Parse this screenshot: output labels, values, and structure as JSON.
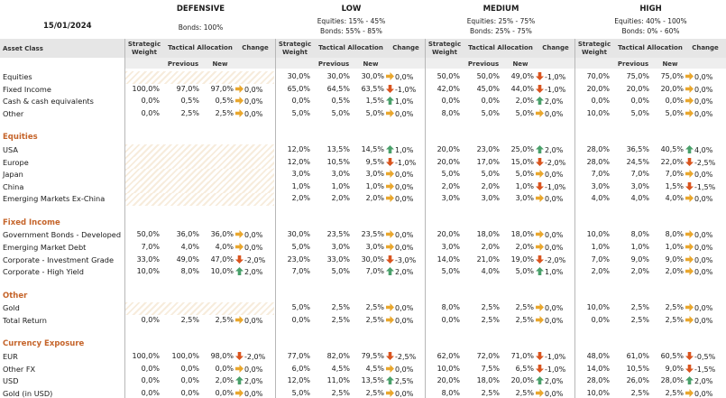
{
  "date": "15/01/2024",
  "profiles": [
    {
      "name": "DEFENSIVE",
      "line1": "Bonds: 100%",
      "line2": ""
    },
    {
      "name": "LOW",
      "line1": "Equities: 15% - 45%",
      "line2": "Bonds: 55% - 85%"
    },
    {
      "name": "MEDIUM",
      "line1": "Equities: 25% - 75%",
      "line2": "Bonds: 25% - 75%"
    },
    {
      "name": "HIGH",
      "line1": "Equities: 40% - 100%",
      "line2": "Bonds: 0% - 60%"
    }
  ],
  "headers": {
    "asset_class": "Asset Class",
    "strategic": "Strategic Weight",
    "tactical": "Tactical Allocation",
    "change": "Change",
    "previous": "Previous",
    "new": "New"
  },
  "colors": {
    "up": "#4aa06a",
    "down": "#d9541e",
    "flat": "#e9a72e",
    "section": "#c5642a"
  },
  "rows": [
    {
      "t": "row",
      "label": "Equities",
      "c": [
        [
          "",
          "",
          "",
          ""
        ],
        [
          "30,0%",
          "30,0%",
          "30,0%",
          "0,0%",
          "flat"
        ],
        [
          "50,0%",
          "50,0%",
          "49,0%",
          "-1,0%",
          "down"
        ],
        [
          "70,0%",
          "75,0%",
          "75,0%",
          "0,0%",
          "flat"
        ]
      ]
    },
    {
      "t": "row",
      "label": "Fixed Income",
      "c": [
        [
          "100,0%",
          "97,0%",
          "97,0%",
          "0,0%",
          "flat"
        ],
        [
          "65,0%",
          "64,5%",
          "63,5%",
          "-1,0%",
          "down"
        ],
        [
          "42,0%",
          "45,0%",
          "44,0%",
          "-1,0%",
          "down"
        ],
        [
          "20,0%",
          "20,0%",
          "20,0%",
          "0,0%",
          "flat"
        ]
      ]
    },
    {
      "t": "row",
      "label": "Cash & cash equivalents",
      "c": [
        [
          "0,0%",
          "0,5%",
          "0,5%",
          "0,0%",
          "flat"
        ],
        [
          "0,0%",
          "0,5%",
          "1,5%",
          "1,0%",
          "up"
        ],
        [
          "0,0%",
          "0,0%",
          "2,0%",
          "2,0%",
          "up"
        ],
        [
          "0,0%",
          "0,0%",
          "0,0%",
          "0,0%",
          "flat"
        ]
      ]
    },
    {
      "t": "row",
      "label": "Other",
      "c": [
        [
          "0,0%",
          "2,5%",
          "2,5%",
          "0,0%",
          "flat"
        ],
        [
          "5,0%",
          "5,0%",
          "5,0%",
          "0,0%",
          "flat"
        ],
        [
          "8,0%",
          "5,0%",
          "5,0%",
          "0,0%",
          "flat"
        ],
        [
          "10,0%",
          "5,0%",
          "5,0%",
          "0,0%",
          "flat"
        ]
      ]
    },
    {
      "t": "gap"
    },
    {
      "t": "sec",
      "label": "Equities"
    },
    {
      "t": "row",
      "label": "USA",
      "c": [
        null,
        [
          "12,0%",
          "13,5%",
          "14,5%",
          "1,0%",
          "up"
        ],
        [
          "20,0%",
          "23,0%",
          "25,0%",
          "2,0%",
          "up"
        ],
        [
          "28,0%",
          "36,5%",
          "40,5%",
          "4,0%",
          "up"
        ]
      ]
    },
    {
      "t": "row",
      "label": "Europe",
      "c": [
        null,
        [
          "12,0%",
          "10,5%",
          "9,5%",
          "-1,0%",
          "down"
        ],
        [
          "20,0%",
          "17,0%",
          "15,0%",
          "-2,0%",
          "down"
        ],
        [
          "28,0%",
          "24,5%",
          "22,0%",
          "-2,5%",
          "down"
        ]
      ]
    },
    {
      "t": "row",
      "label": "Japan",
      "c": [
        null,
        [
          "3,0%",
          "3,0%",
          "3,0%",
          "0,0%",
          "flat"
        ],
        [
          "5,0%",
          "5,0%",
          "5,0%",
          "0,0%",
          "flat"
        ],
        [
          "7,0%",
          "7,0%",
          "7,0%",
          "0,0%",
          "flat"
        ]
      ]
    },
    {
      "t": "row",
      "label": "China",
      "c": [
        null,
        [
          "1,0%",
          "1,0%",
          "1,0%",
          "0,0%",
          "flat"
        ],
        [
          "2,0%",
          "2,0%",
          "1,0%",
          "-1,0%",
          "down"
        ],
        [
          "3,0%",
          "3,0%",
          "1,5%",
          "-1,5%",
          "down"
        ]
      ]
    },
    {
      "t": "row",
      "label": "Emerging Markets Ex-China",
      "c": [
        null,
        [
          "2,0%",
          "2,0%",
          "2,0%",
          "0,0%",
          "flat"
        ],
        [
          "3,0%",
          "3,0%",
          "3,0%",
          "0,0%",
          "flat"
        ],
        [
          "4,0%",
          "4,0%",
          "4,0%",
          "0,0%",
          "flat"
        ]
      ]
    },
    {
      "t": "gap"
    },
    {
      "t": "sec",
      "label": "Fixed Income"
    },
    {
      "t": "row",
      "label": "Government Bonds - Developed",
      "c": [
        [
          "50,0%",
          "36,0%",
          "36,0%",
          "0,0%",
          "flat"
        ],
        [
          "30,0%",
          "23,5%",
          "23,5%",
          "0,0%",
          "flat"
        ],
        [
          "20,0%",
          "18,0%",
          "18,0%",
          "0,0%",
          "flat"
        ],
        [
          "10,0%",
          "8,0%",
          "8,0%",
          "0,0%",
          "flat"
        ]
      ]
    },
    {
      "t": "row",
      "label": "Emerging Market Debt",
      "c": [
        [
          "7,0%",
          "4,0%",
          "4,0%",
          "0,0%",
          "flat"
        ],
        [
          "5,0%",
          "3,0%",
          "3,0%",
          "0,0%",
          "flat"
        ],
        [
          "3,0%",
          "2,0%",
          "2,0%",
          "0,0%",
          "flat"
        ],
        [
          "1,0%",
          "1,0%",
          "1,0%",
          "0,0%",
          "flat"
        ]
      ]
    },
    {
      "t": "row",
      "label": "Corporate - Investment Grade",
      "c": [
        [
          "33,0%",
          "49,0%",
          "47,0%",
          "-2,0%",
          "down"
        ],
        [
          "23,0%",
          "33,0%",
          "30,0%",
          "-3,0%",
          "down"
        ],
        [
          "14,0%",
          "21,0%",
          "19,0%",
          "-2,0%",
          "down"
        ],
        [
          "7,0%",
          "9,0%",
          "9,0%",
          "0,0%",
          "flat"
        ]
      ]
    },
    {
      "t": "row",
      "label": "Corporate - High Yield",
      "c": [
        [
          "10,0%",
          "8,0%",
          "10,0%",
          "2,0%",
          "up"
        ],
        [
          "7,0%",
          "5,0%",
          "7,0%",
          "2,0%",
          "up"
        ],
        [
          "5,0%",
          "4,0%",
          "5,0%",
          "1,0%",
          "up"
        ],
        [
          "2,0%",
          "2,0%",
          "2,0%",
          "0,0%",
          "flat"
        ]
      ]
    },
    {
      "t": "gap"
    },
    {
      "t": "sec",
      "label": "Other"
    },
    {
      "t": "row",
      "label": "Gold",
      "c": [
        null,
        [
          "5,0%",
          "2,5%",
          "2,5%",
          "0,0%",
          "flat"
        ],
        [
          "8,0%",
          "2,5%",
          "2,5%",
          "0,0%",
          "flat"
        ],
        [
          "10,0%",
          "2,5%",
          "2,5%",
          "0,0%",
          "flat"
        ]
      ]
    },
    {
      "t": "row",
      "label": "Total Return",
      "c": [
        [
          "0,0%",
          "2,5%",
          "2,5%",
          "0,0%",
          "flat"
        ],
        [
          "0,0%",
          "2,5%",
          "2,5%",
          "0,0%",
          "flat"
        ],
        [
          "0,0%",
          "2,5%",
          "2,5%",
          "0,0%",
          "flat"
        ],
        [
          "0,0%",
          "2,5%",
          "2,5%",
          "0,0%",
          "flat"
        ]
      ]
    },
    {
      "t": "gap"
    },
    {
      "t": "sec",
      "label": "Currency Exposure"
    },
    {
      "t": "row",
      "label": "EUR",
      "c": [
        [
          "100,0%",
          "100,0%",
          "98,0%",
          "-2,0%",
          "down"
        ],
        [
          "77,0%",
          "82,0%",
          "79,5%",
          "-2,5%",
          "down"
        ],
        [
          "62,0%",
          "72,0%",
          "71,0%",
          "-1,0%",
          "down"
        ],
        [
          "48,0%",
          "61,0%",
          "60,5%",
          "-0,5%",
          "down"
        ]
      ]
    },
    {
      "t": "row",
      "label": "Other FX",
      "c": [
        [
          "0,0%",
          "0,0%",
          "0,0%",
          "0,0%",
          "flat"
        ],
        [
          "6,0%",
          "4,5%",
          "4,5%",
          "0,0%",
          "flat"
        ],
        [
          "10,0%",
          "7,5%",
          "6,5%",
          "-1,0%",
          "down"
        ],
        [
          "14,0%",
          "10,5%",
          "9,0%",
          "-1,5%",
          "down"
        ]
      ]
    },
    {
      "t": "row",
      "label": "USD",
      "c": [
        [
          "0,0%",
          "0,0%",
          "2,0%",
          "2,0%",
          "up"
        ],
        [
          "12,0%",
          "11,0%",
          "13,5%",
          "2,5%",
          "up"
        ],
        [
          "20,0%",
          "18,0%",
          "20,0%",
          "2,0%",
          "up"
        ],
        [
          "28,0%",
          "26,0%",
          "28,0%",
          "2,0%",
          "up"
        ]
      ]
    },
    {
      "t": "row",
      "label": "Gold (in USD)",
      "c": [
        [
          "0,0%",
          "0,0%",
          "0,0%",
          "0,0%",
          "flat"
        ],
        [
          "5,0%",
          "2,5%",
          "2,5%",
          "0,0%",
          "flat"
        ],
        [
          "8,0%",
          "2,5%",
          "2,5%",
          "0,0%",
          "flat"
        ],
        [
          "10,0%",
          "2,5%",
          "2,5%",
          "0,0%",
          "flat"
        ]
      ]
    }
  ]
}
